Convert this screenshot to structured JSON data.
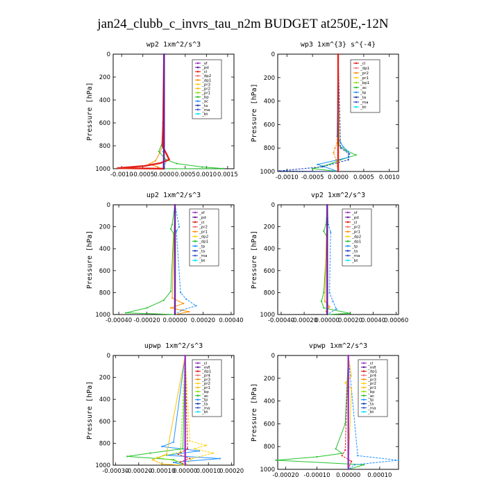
{
  "figure_title": "jan24_clubb_c_invrs_tau_n2m  BUDGET at250E,-12N",
  "chart_data": [
    {
      "type": "line",
      "title": "wp2   1xm^2/s^3",
      "ylabel": "Pressure  [hPa]",
      "ylim": [
        1000,
        0
      ],
      "y_ticks": [
        0,
        200,
        400,
        600,
        800,
        1000
      ],
      "xlim": [
        -0.0012,
        0.00165
      ],
      "x_ticks": [
        -0.001,
        -0.0005,
        0.0,
        0.0005,
        0.001,
        0.0015
      ],
      "x_tick_labels": [
        "-0.0010",
        "-0.0005",
        "0.0000",
        "0.0005",
        "0.0010",
        "0.0015"
      ],
      "legend": {
        "position": "top-right",
        "entries": [
          {
            "label": "_sf",
            "color": "#9b30c8"
          },
          {
            "label": "_pd",
            "color": "#6a1fa0"
          },
          {
            "label": "_cl",
            "color": "#e2231a"
          },
          {
            "label": "_dp2",
            "color": "#f07070"
          },
          {
            "label": "_dp1",
            "color": "#ff8c00"
          },
          {
            "label": "_pr3",
            "color": "#ffd000"
          },
          {
            "label": "_pr2",
            "color": "#ffc000"
          },
          {
            "label": "_pr1",
            "color": "#8ee000"
          },
          {
            "label": "_bp",
            "color": "#22c22a"
          },
          {
            "label": "_ac",
            "color": "#1e90ff"
          },
          {
            "label": "_ta",
            "color": "#1a3fb5"
          },
          {
            "label": "_ma",
            "color": "#3a5ad0"
          },
          {
            "label": "_bt",
            "color": "#00e5ff"
          }
        ]
      },
      "series": [
        {
          "name": "_dp1",
          "x": [
            0,
            -1e-05,
            -0.0001,
            -0.0002,
            -0.00035,
            -0.00015,
            -0.0001,
            0
          ],
          "y": [
            0,
            780,
            860,
            930,
            960,
            985,
            995,
            1000
          ]
        },
        {
          "name": "_ac",
          "x": [
            0,
            -3e-05,
            -2e-05,
            4e-05,
            1e-05,
            0
          ],
          "y": [
            0,
            600,
            850,
            940,
            985,
            1000
          ]
        },
        {
          "name": "_bp",
          "x": [
            0,
            -2e-05,
            -0.00012,
            4e-05,
            0.0003,
            0.0009,
            0.0014,
            0
          ],
          "y": [
            0,
            750,
            850,
            920,
            955,
            985,
            998,
            1000
          ]
        },
        {
          "name": "_cl",
          "x": [
            0,
            -2e-05,
            -4e-05,
            7e-05,
            0.00012,
            -8e-05,
            -0.00045,
            -0.0011,
            0
          ],
          "y": [
            0,
            600,
            800,
            880,
            920,
            950,
            975,
            995,
            1000
          ]
        },
        {
          "name": "_pd",
          "x": [
            0,
            0,
            -1e-05,
            0
          ],
          "y": [
            0,
            800,
            990,
            1000
          ]
        }
      ]
    },
    {
      "type": "line",
      "title": "wp3   1xm^{3} s^{-4}",
      "ylabel": "Pressure  [hPa]",
      "ylim": [
        1000,
        0
      ],
      "y_ticks": [
        0,
        200,
        400,
        600,
        800,
        1000
      ],
      "xlim": [
        -0.00118,
        0.00118
      ],
      "x_ticks": [
        -0.001,
        -0.0005,
        0.0,
        0.0005,
        0.001
      ],
      "x_tick_labels": [
        "-0.0010",
        "-0.0005",
        "0.0000",
        "0.0005",
        "0.0010"
      ],
      "legend": {
        "position": "top-right",
        "entries": [
          {
            "label": "_cl",
            "color": "#e2231a"
          },
          {
            "label": "_dp1",
            "color": "#f07070"
          },
          {
            "label": "_pr2",
            "color": "#ff8c00"
          },
          {
            "label": "_pr1",
            "color": "#ffd000"
          },
          {
            "label": "_bp1",
            "color": "#8ee000"
          },
          {
            "label": "_ac",
            "color": "#22c22a"
          },
          {
            "label": "_tp",
            "color": "#1e90ff"
          },
          {
            "label": "_ta",
            "color": "#1a3fb5"
          },
          {
            "label": "_ma",
            "color": "#3a5ad0"
          },
          {
            "label": "_bt",
            "color": "#00e5ff"
          }
        ]
      },
      "series": [
        {
          "name": "_ac",
          "x": [
            0,
            2e-05,
            0.00015,
            0.00035,
            5e-05,
            -0.00012,
            -0.0003,
            -0.0005,
            0
          ],
          "y": [
            0,
            780,
            820,
            860,
            900,
            930,
            955,
            975,
            1000
          ]
        },
        {
          "name": "_pr2",
          "x": [
            0,
            -2e-05,
            -6e-05,
            -9e-05,
            -4e-05,
            0
          ],
          "y": [
            0,
            760,
            800,
            840,
            900,
            1000
          ]
        },
        {
          "name": "_tp",
          "x": [
            0,
            -2e-05,
            0.0001,
            0.0002,
            0.0002,
            -0.0004,
            0
          ],
          "y": [
            0,
            700,
            790,
            830,
            880,
            940,
            1000
          ]
        },
        {
          "name": "_ta",
          "x": [
            0,
            5e-05,
            0.00022,
            0.0002,
            -0.0003,
            -0.00115,
            0
          ],
          "y": [
            0,
            800,
            850,
            900,
            960,
            995,
            1000
          ]
        },
        {
          "name": "_cl",
          "x": [
            0,
            0,
            0,
            0
          ],
          "y": [
            0,
            500,
            990,
            1000
          ]
        }
      ]
    },
    {
      "type": "line",
      "title": "up2   1xm^2/s^3",
      "ylabel": "Pressure  [hPa]",
      "ylim": [
        1000,
        0
      ],
      "y_ticks": [
        0,
        200,
        400,
        600,
        800,
        1000
      ],
      "xlim": [
        -0.00044,
        0.00042
      ],
      "x_ticks": [
        -0.0004,
        -0.0002,
        0.0,
        0.0002,
        0.0004
      ],
      "x_tick_labels": [
        "-0.00040",
        "-0.00020",
        "0.00000",
        "0.00020",
        "0.00040"
      ],
      "legend": {
        "position": "top-right",
        "entries": [
          {
            "label": "_sf",
            "color": "#9b30c8"
          },
          {
            "label": "_pd",
            "color": "#6a1fa0"
          },
          {
            "label": "_cl",
            "color": "#e2231a"
          },
          {
            "label": "_pr2",
            "color": "#f07070"
          },
          {
            "label": "_pr1",
            "color": "#ff8c00"
          },
          {
            "label": "_dp2",
            "color": "#ffd000"
          },
          {
            "label": "_dp1",
            "color": "#22c22a"
          },
          {
            "label": "_tp",
            "color": "#1e90ff"
          },
          {
            "label": "_ta",
            "color": "#1a3fb5"
          },
          {
            "label": "_ma",
            "color": "#3a5ad0"
          },
          {
            "label": "_bt",
            "color": "#00e5ff"
          }
        ]
      },
      "series": [
        {
          "name": "_dp1",
          "x": [
            0,
            -2e-05,
            -3e-05,
            -1e-05,
            -3e-05,
            -8e-05,
            -0.0002,
            -0.00035,
            0
          ],
          "y": [
            0,
            180,
            220,
            260,
            790,
            870,
            940,
            985,
            1000
          ]
        },
        {
          "name": "_tp",
          "x": [
            0,
            3e-05,
            1e-05,
            4e-05,
            8e-05,
            0.00015,
            5e-05,
            0
          ],
          "y": [
            0,
            200,
            240,
            800,
            860,
            920,
            960,
            1000
          ]
        },
        {
          "name": "_pr1",
          "x": [
            0,
            -2e-05,
            6e-05,
            -3e-05,
            0.0001,
            0
          ],
          "y": [
            0,
            850,
            900,
            940,
            975,
            1000
          ]
        },
        {
          "name": "_pd",
          "x": [
            0,
            0,
            0
          ],
          "y": [
            0,
            990,
            1000
          ]
        }
      ]
    },
    {
      "type": "line",
      "title": "vp2   1xm^2/s^3",
      "ylabel": "Pressure  [hPa]",
      "ylim": [
        1000,
        0
      ],
      "y_ticks": [
        0,
        200,
        400,
        600,
        800,
        1000
      ],
      "xlim": [
        -0.00043,
        0.00062
      ],
      "x_ticks": [
        -0.0004,
        -0.0002,
        0.0,
        0.0002,
        0.0004,
        0.0006
      ],
      "x_tick_labels": [
        "-0.00040",
        "-0.00020",
        "0.00000",
        "0.00020",
        "0.00040",
        "0.00060"
      ],
      "legend": {
        "position": "top-right",
        "entries": [
          {
            "label": "_sf",
            "color": "#9b30c8"
          },
          {
            "label": "_pd",
            "color": "#6a1fa0"
          },
          {
            "label": "_cl",
            "color": "#e2231a"
          },
          {
            "label": "_pr2",
            "color": "#f07070"
          },
          {
            "label": "_pr1",
            "color": "#ff8c00"
          },
          {
            "label": "_dp2",
            "color": "#ffd000"
          },
          {
            "label": "_dp1",
            "color": "#22c22a"
          },
          {
            "label": "_tp",
            "color": "#1e90ff"
          },
          {
            "label": "_ta",
            "color": "#1a3fb5"
          },
          {
            "label": "_ma",
            "color": "#3a5ad0"
          },
          {
            "label": "_bt",
            "color": "#00e5ff"
          }
        ]
      },
      "series": [
        {
          "name": "_dp1",
          "x": [
            0,
            -1e-05,
            -3e-05,
            0,
            -3e-05,
            -5e-05,
            -3e-05,
            0.0002,
            0
          ],
          "y": [
            0,
            180,
            240,
            300,
            800,
            880,
            940,
            990,
            1000
          ]
        },
        {
          "name": "_tp",
          "x": [
            0,
            1e-05,
            3e-05,
            2e-05,
            5e-05,
            8e-05,
            0
          ],
          "y": [
            0,
            180,
            250,
            800,
            880,
            950,
            1000
          ]
        },
        {
          "name": "_pr1",
          "x": [
            0,
            -2e-05,
            2e-05,
            -1e-05,
            0
          ],
          "y": [
            0,
            880,
            930,
            970,
            1000
          ]
        },
        {
          "name": "_pd",
          "x": [
            0,
            0,
            0
          ],
          "y": [
            0,
            990,
            1000
          ]
        }
      ]
    },
    {
      "type": "line",
      "title": "upwp   1xm^2/s^3",
      "ylabel": "Pressure  [hPa]",
      "ylim": [
        1000,
        0
      ],
      "y_ticks": [
        0,
        200,
        400,
        600,
        800,
        1000
      ],
      "xlim": [
        -0.00031,
        0.00021
      ],
      "x_ticks": [
        -0.0003,
        -0.0002,
        -0.0001,
        0.0,
        0.0001,
        0.0002
      ],
      "x_tick_labels": [
        "-0.00030",
        "-0.00020",
        "-0.00010",
        "0.00000",
        "0.00010",
        "0.00020"
      ],
      "legend": {
        "position": "top-right",
        "entries": [
          {
            "label": "_cl",
            "color": "#9b30c8"
          },
          {
            "label": "_mfl",
            "color": "#6a1fa0"
          },
          {
            "label": "_dp1",
            "color": "#e2231a"
          },
          {
            "label": "_pr4",
            "color": "#f07070"
          },
          {
            "label": "_pr3",
            "color": "#ff8c00"
          },
          {
            "label": "_pr2",
            "color": "#ffd000"
          },
          {
            "label": "_pr1",
            "color": "#ffc000"
          },
          {
            "label": "_bp",
            "color": "#8ee000"
          },
          {
            "label": "_ac",
            "color": "#22c22a"
          },
          {
            "label": "_tp",
            "color": "#1e90ff"
          },
          {
            "label": "_ta",
            "color": "#1a3fb5"
          },
          {
            "label": "_ma",
            "color": "#3a5ad0"
          },
          {
            "label": "_bt",
            "color": "#00e5ff"
          }
        ]
      },
      "series": [
        {
          "name": "_tp",
          "x": [
            0,
            -5e-05,
            -0.0001,
            6e-05,
            -8e-05,
            0.00015,
            -5e-05,
            0
          ],
          "y": [
            0,
            790,
            830,
            870,
            910,
            940,
            975,
            1000
          ]
        },
        {
          "name": "_pr2",
          "x": [
            0,
            2e-05,
            9e-05,
            4e-05,
            0.00012,
            3e-05,
            0
          ],
          "y": [
            0,
            780,
            820,
            850,
            890,
            940,
            1000
          ]
        },
        {
          "name": "_ac",
          "x": [
            0,
            -1e-05,
            -0.00015,
            -0.00025,
            -5e-05,
            0
          ],
          "y": [
            0,
            850,
            890,
            920,
            950,
            1000
          ]
        },
        {
          "name": "_bp",
          "x": [
            0,
            -2e-05,
            -0.00012,
            -4e-05,
            0
          ],
          "y": [
            0,
            880,
            930,
            960,
            1000
          ]
        },
        {
          "name": "_pr1",
          "x": [
            0,
            -8e-05,
            -0.00014,
            -0.0001,
            0
          ],
          "y": [
            0,
            900,
            950,
            990,
            1000
          ]
        },
        {
          "name": "_dp1",
          "x": [
            0,
            1e-05,
            -3e-05,
            2e-05,
            -2e-05,
            0
          ],
          "y": [
            0,
            850,
            900,
            940,
            970,
            1000
          ]
        },
        {
          "name": "_cl",
          "x": [
            0,
            0,
            0
          ],
          "y": [
            0,
            990,
            1000
          ]
        }
      ]
    },
    {
      "type": "line",
      "title": "vpwp   1xm^2/s^3",
      "ylabel": "Pressure  [hPa]",
      "ylim": [
        1000,
        0
      ],
      "y_ticks": [
        0,
        200,
        400,
        600,
        800,
        1000
      ],
      "xlim": [
        -0.000225,
        0.00016
      ],
      "x_ticks": [
        -0.0002,
        -0.0001,
        0.0,
        0.0001
      ],
      "x_tick_labels": [
        "-0.00020",
        "-0.00010",
        "0.00000",
        "0.00010"
      ],
      "legend": {
        "position": "top-right",
        "entries": [
          {
            "label": "_cl",
            "color": "#9b30c8"
          },
          {
            "label": "_mfl",
            "color": "#6a1fa0"
          },
          {
            "label": "_dp1",
            "color": "#e2231a"
          },
          {
            "label": "_pr4",
            "color": "#f07070"
          },
          {
            "label": "_pr3",
            "color": "#ff8c00"
          },
          {
            "label": "_pr2",
            "color": "#ffd000"
          },
          {
            "label": "_pr1",
            "color": "#ffc000"
          },
          {
            "label": "_bp",
            "color": "#8ee000"
          },
          {
            "label": "_ac",
            "color": "#22c22a"
          },
          {
            "label": "_tp",
            "color": "#1e90ff"
          },
          {
            "label": "_ta",
            "color": "#1a3fb5"
          },
          {
            "label": "_ma",
            "color": "#3a5ad0"
          },
          {
            "label": "_bt",
            "color": "#00e5ff"
          }
        ]
      },
      "series": [
        {
          "name": "_ac",
          "x": [
            0,
            -1e-05,
            -4e-05,
            -2e-05,
            -0.0001,
            -0.00023,
            5e-05,
            0
          ],
          "y": [
            0,
            600,
            820,
            860,
            890,
            920,
            960,
            1000
          ]
        },
        {
          "name": "_tp",
          "x": [
            0,
            3e-05,
            0.00016,
            2e-05,
            0
          ],
          "y": [
            0,
            880,
            920,
            960,
            1000
          ]
        },
        {
          "name": "_pr2",
          "x": [
            0,
            1e-05,
            -1e-05,
            1e-05,
            0
          ],
          "y": [
            0,
            180,
            240,
            290,
            1000
          ]
        },
        {
          "name": "_dp1",
          "x": [
            0,
            -1e-05,
            -2e-05,
            1e-05,
            0
          ],
          "y": [
            0,
            830,
            880,
            930,
            1000
          ]
        },
        {
          "name": "_cl",
          "x": [
            0,
            0,
            0
          ],
          "y": [
            0,
            990,
            1000
          ]
        }
      ]
    }
  ]
}
